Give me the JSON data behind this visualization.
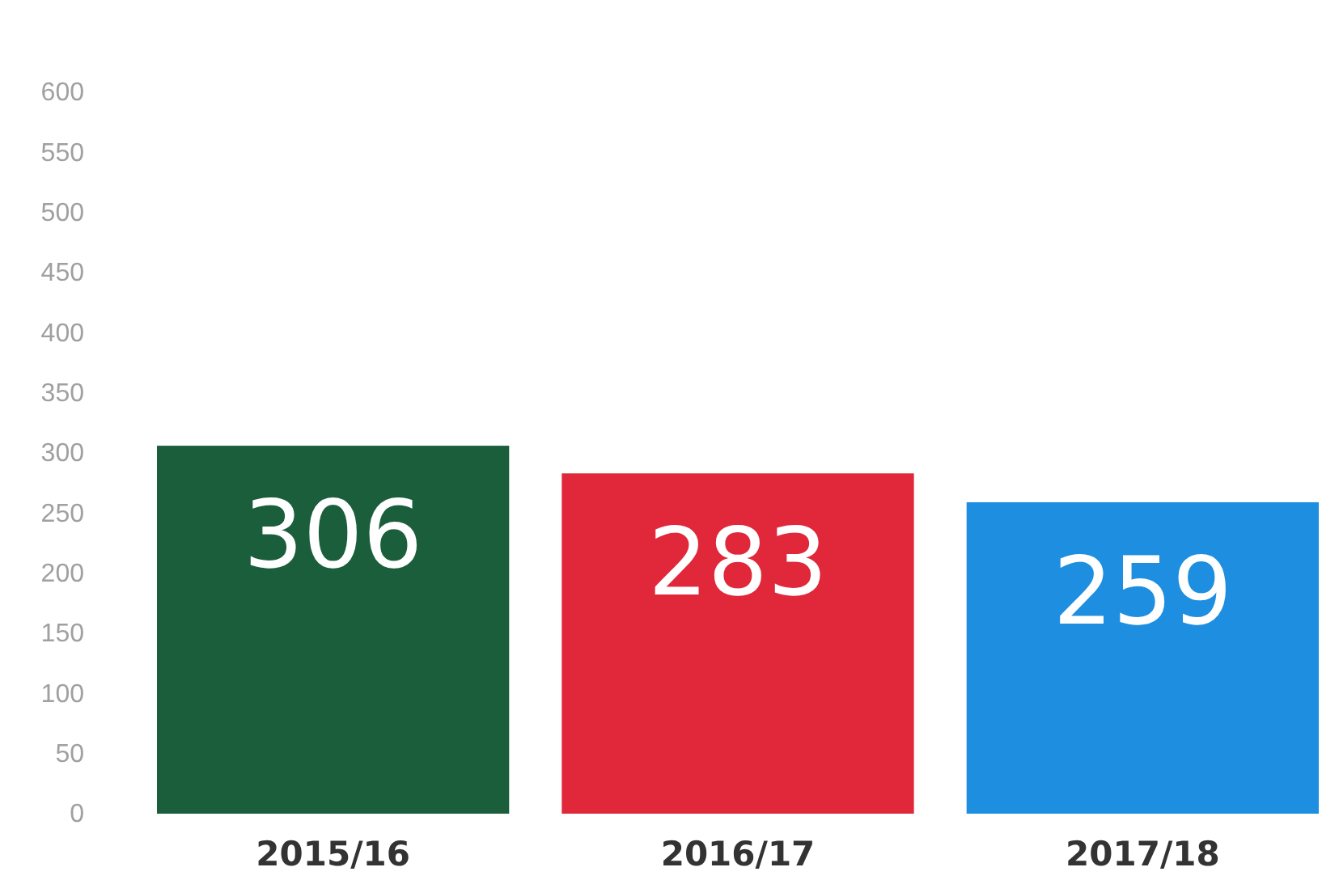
{
  "chart_data": {
    "type": "bar",
    "categories": [
      "2015/16",
      "2016/17",
      "2017/18"
    ],
    "values": [
      306,
      283,
      259
    ],
    "colors": [
      "#1b5e3b",
      "#e0283a",
      "#1e8fe0"
    ],
    "ylim": [
      0,
      600
    ],
    "yticks": [
      0,
      50,
      100,
      150,
      200,
      250,
      300,
      350,
      400,
      450,
      500,
      550,
      600
    ],
    "grid": false,
    "data_labels": true
  }
}
